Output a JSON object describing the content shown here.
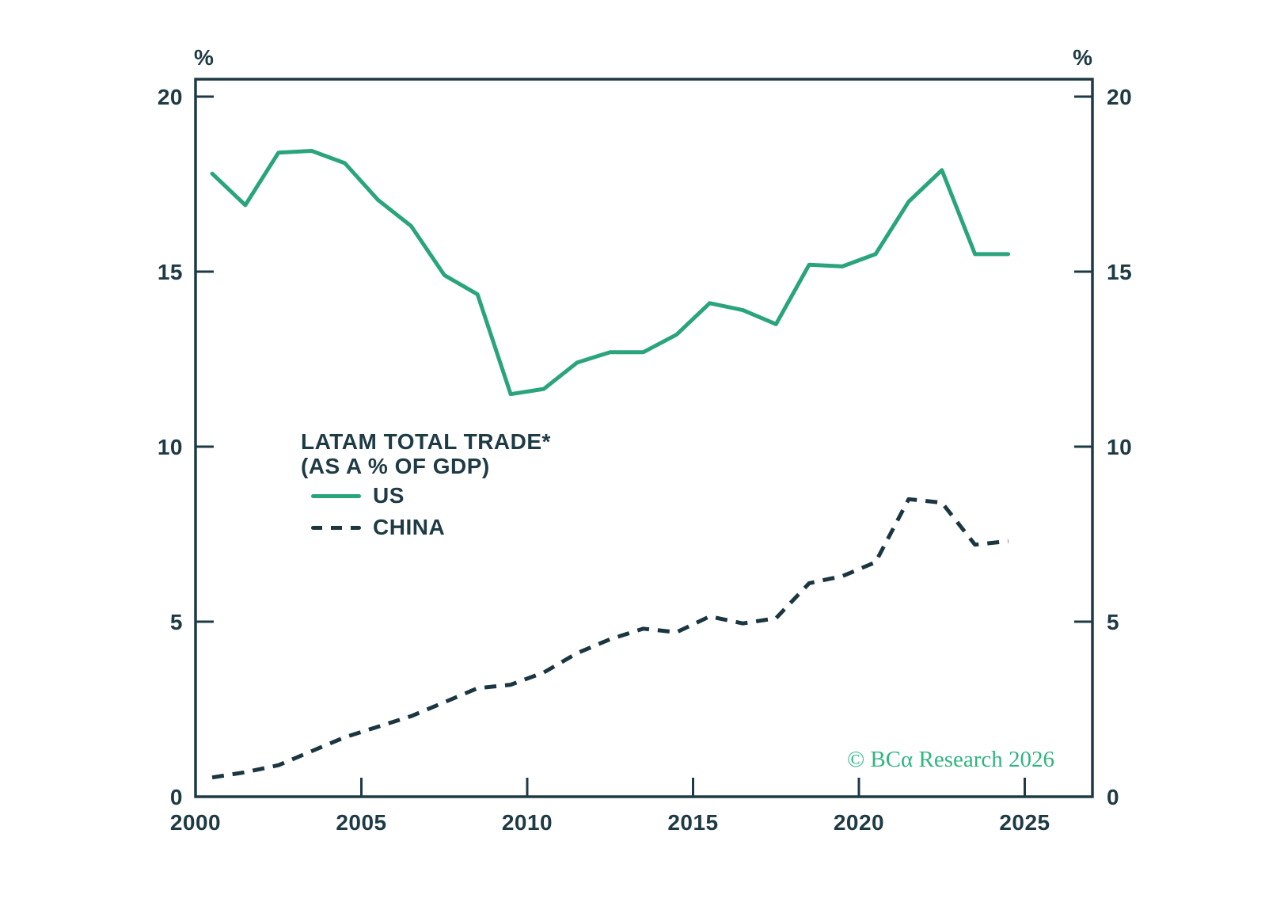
{
  "axes": {
    "unit_left": "%",
    "unit_right": "%",
    "text_color": "#1e3a44",
    "axis_color": "#1e3a44"
  },
  "legend": {
    "title_line1": "LATAM TOTAL TRADE*",
    "title_line2": "(AS A % OF GDP)",
    "items": [
      {
        "label": "US",
        "style": "solid",
        "color": "#2aa47c"
      },
      {
        "label": "CHINA",
        "style": "dashed",
        "color": "#1b3640"
      }
    ]
  },
  "watermark": {
    "text": "© BCα Research 2026",
    "color": "#2fb57e"
  },
  "chart_data": {
    "type": "line",
    "title": "LATAM TOTAL TRADE* (AS A % OF GDP)",
    "ylabel_left": "%",
    "ylabel_right": "%",
    "grid": false,
    "legend_position": "inside-center-left",
    "ylim": [
      0,
      20
    ],
    "yticks": [
      0,
      5,
      10,
      15,
      20
    ],
    "xlim": [
      2000,
      2027
    ],
    "xticks": [
      2000,
      2005,
      2010,
      2015,
      2020,
      2025
    ],
    "x": [
      2000,
      2001,
      2002,
      2003,
      2004,
      2005,
      2006,
      2007,
      2008,
      2009,
      2010,
      2011,
      2012,
      2013,
      2014,
      2015,
      2016,
      2017,
      2018,
      2019,
      2020,
      2021,
      2022,
      2023,
      2024
    ],
    "series": [
      {
        "name": "US",
        "style": "solid",
        "color": "#2aa47c",
        "values": [
          17.8,
          16.9,
          18.4,
          18.45,
          18.1,
          17.05,
          16.3,
          14.9,
          14.35,
          11.5,
          11.65,
          12.4,
          12.7,
          12.7,
          13.2,
          14.1,
          13.9,
          13.5,
          15.2,
          15.15,
          15.5,
          17.0,
          17.9,
          15.5,
          15.5
        ]
      },
      {
        "name": "CHINA",
        "style": "dashed",
        "color": "#1b3640",
        "values": [
          0.55,
          0.7,
          0.9,
          1.3,
          1.7,
          2.0,
          2.3,
          2.7,
          3.1,
          3.2,
          3.55,
          4.1,
          4.5,
          4.8,
          4.7,
          5.15,
          4.95,
          5.1,
          6.1,
          6.3,
          6.7,
          8.5,
          8.4,
          7.2,
          7.3
        ]
      }
    ]
  }
}
